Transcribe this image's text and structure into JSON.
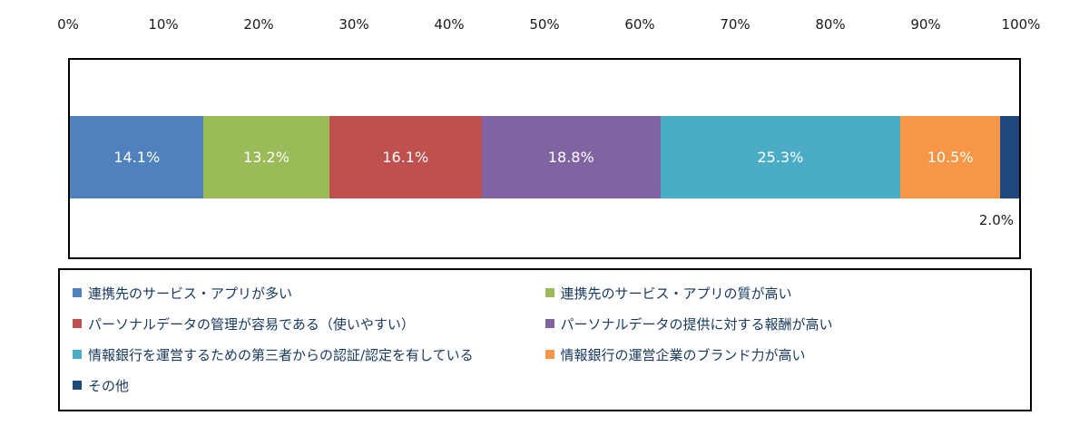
{
  "chart_data": {
    "type": "bar",
    "subtype": "horizontal-stacked-100",
    "title": "",
    "xlabel": "",
    "ylabel": "",
    "xlim": [
      0,
      100
    ],
    "axis_ticks": [
      "0%",
      "10%",
      "20%",
      "30%",
      "40%",
      "50%",
      "60%",
      "70%",
      "80%",
      "90%",
      "100%"
    ],
    "legend_position": "bottom",
    "grid": false,
    "series": [
      {
        "label": "連携先のサービス・アプリが多い",
        "value": 14.1,
        "inside_label": "14.1%",
        "color": "#4F81BD"
      },
      {
        "label": "連携先のサービス・アプリの質が高い",
        "value": 13.2,
        "inside_label": "13.2%",
        "color": "#9BBB59"
      },
      {
        "label": "パーソナルデータの管理が容易である（使いやすい）",
        "value": 16.1,
        "inside_label": "16.1%",
        "color": "#C0504D"
      },
      {
        "label": "パーソナルデータの提供に対する報酬が高い",
        "value": 18.8,
        "inside_label": "18.8%",
        "color": "#8064A2"
      },
      {
        "label": "情報銀行を運営するための第三者からの認証/認定を有している",
        "value": 25.3,
        "inside_label": "25.3%",
        "color": "#4BACC6"
      },
      {
        "label": "情報銀行の運営企業のブランド力が高い",
        "value": 10.5,
        "inside_label": "10.5%",
        "color": "#F79646"
      },
      {
        "label": "その他",
        "value": 2.0,
        "inside_label": "",
        "color": "#1F497D"
      }
    ],
    "outside_label": {
      "series": "その他",
      "text": "2.0%"
    }
  }
}
